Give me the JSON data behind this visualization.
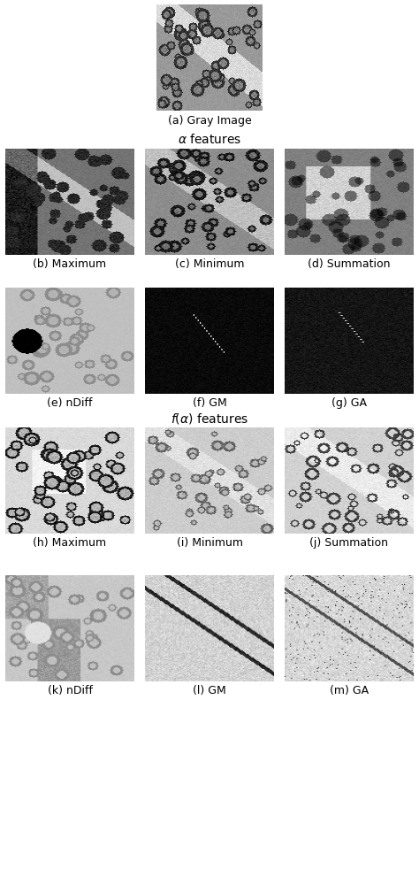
{
  "figure_size": [
    4.74,
    9.82
  ],
  "dpi": 100,
  "background_color": "#ffffff",
  "panels": [
    {
      "label": "(a) Gray Image"
    },
    {
      "label": "(b) Maximum"
    },
    {
      "label": "(c) Minimum"
    },
    {
      "label": "(d) Summation"
    },
    {
      "label": "(e) nDiff"
    },
    {
      "label": "(f) GM"
    },
    {
      "label": "(g) GA"
    },
    {
      "label": "(h) Maximum"
    },
    {
      "label": "(i) Minimum"
    },
    {
      "label": "(j) Summation"
    },
    {
      "label": "(k) nDiff"
    },
    {
      "label": "(l) GM"
    },
    {
      "label": "(m) GA"
    }
  ],
  "alpha_section_label": "$\\alpha$ features",
  "falpha_section_label": "$f(\\alpha)$ features",
  "label_fontsize": 9,
  "section_fontsize": 10
}
